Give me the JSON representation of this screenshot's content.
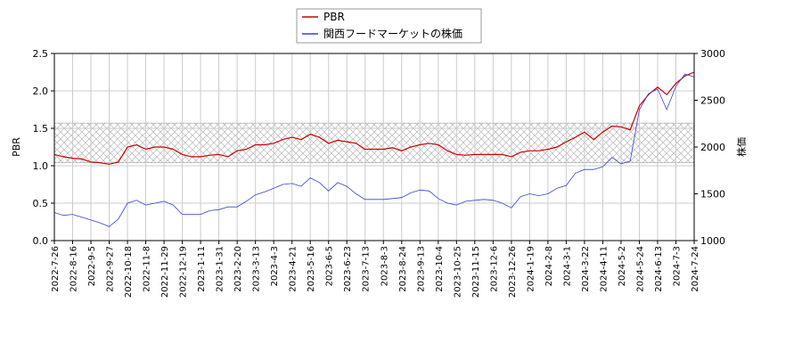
{
  "chart_data": {
    "type": "line",
    "categories": [
      "2022-7-26",
      null,
      "2022-8-16",
      null,
      "2022-9-5",
      null,
      "2022-9-27",
      null,
      "2022-10-18",
      null,
      "2022-11-8",
      null,
      "2022-11-29",
      null,
      "2022-12-19",
      null,
      "2023-1-11",
      null,
      "2023-1-31",
      null,
      "2023-2-20",
      null,
      "2023-3-13",
      null,
      "2023-4-3",
      null,
      "2023-4-21",
      null,
      "2023-5-16",
      null,
      "2023-6-5",
      null,
      "2023-6-23",
      null,
      "2023-7-13",
      null,
      "2023-8-3",
      null,
      "2023-8-24",
      null,
      "2023-9-13",
      null,
      "2023-10-4",
      null,
      "2023-10-25",
      null,
      "2023-11-15",
      null,
      "2023-12-6",
      null,
      "2023-12-26",
      null,
      "2024-1-19",
      null,
      "2024-2-8",
      null,
      "2024-3-1",
      null,
      "2024-3-22",
      null,
      "2024-4-11",
      null,
      "2024-5-2",
      null,
      "2024-5-24",
      null,
      "2024-6-13",
      null,
      "2024-7-3",
      null,
      "2024-7-24"
    ],
    "series": [
      {
        "name": "PBR",
        "color": "#cc0000",
        "values": [
          1.15,
          1.12,
          1.1,
          1.09,
          1.05,
          1.04,
          1.02,
          1.05,
          1.25,
          1.28,
          1.22,
          1.25,
          1.25,
          1.22,
          1.15,
          1.12,
          1.12,
          1.14,
          1.15,
          1.12,
          1.2,
          1.22,
          1.28,
          1.28,
          1.3,
          1.35,
          1.38,
          1.35,
          1.42,
          1.38,
          1.3,
          1.34,
          1.32,
          1.3,
          1.22,
          1.22,
          1.22,
          1.24,
          1.2,
          1.25,
          1.28,
          1.3,
          1.28,
          1.2,
          1.15,
          1.14,
          1.15,
          1.15,
          1.15,
          1.15,
          1.12,
          1.18,
          1.2,
          1.2,
          1.22,
          1.25,
          1.32,
          1.38,
          1.45,
          1.35,
          1.45,
          1.53,
          1.52,
          1.48,
          1.8,
          1.95,
          2.05,
          1.95,
          2.1,
          2.2,
          2.25
        ]
      },
      {
        "name": "関西フードマーケットの株価",
        "color": "#3344cc",
        "axis": "y2",
        "values": [
          1300,
          1270,
          1280,
          1250,
          1220,
          1190,
          1150,
          1230,
          1400,
          1430,
          1380,
          1400,
          1420,
          1380,
          1280,
          1280,
          1280,
          1320,
          1330,
          1360,
          1360,
          1420,
          1490,
          1520,
          1560,
          1600,
          1610,
          1580,
          1670,
          1620,
          1530,
          1620,
          1580,
          1500,
          1440,
          1440,
          1440,
          1450,
          1460,
          1510,
          1540,
          1530,
          1450,
          1400,
          1380,
          1420,
          1430,
          1440,
          1430,
          1400,
          1350,
          1470,
          1500,
          1480,
          1500,
          1560,
          1590,
          1720,
          1760,
          1760,
          1790,
          1890,
          1820,
          1850,
          2400,
          2570,
          2620,
          2400,
          2650,
          2780,
          2750
        ]
      }
    ],
    "ylabel": "PBR",
    "y2label": "株価",
    "ylim": [
      0,
      2.5
    ],
    "yticks": [
      {
        "value": 0,
        "label": "0.0"
      },
      {
        "value": 0.5,
        "label": "0.5"
      },
      {
        "value": 1,
        "label": "1.0"
      },
      {
        "value": 1.5,
        "label": "1.5"
      },
      {
        "value": 2,
        "label": "2.0"
      },
      {
        "value": 2.5,
        "label": "2.5"
      }
    ],
    "y2lim": [
      1000,
      3000
    ],
    "y2ticks": [
      1000,
      1500,
      2000,
      2500,
      3000
    ],
    "shaded_band": [
      1.04,
      1.57
    ],
    "grid": true
  }
}
